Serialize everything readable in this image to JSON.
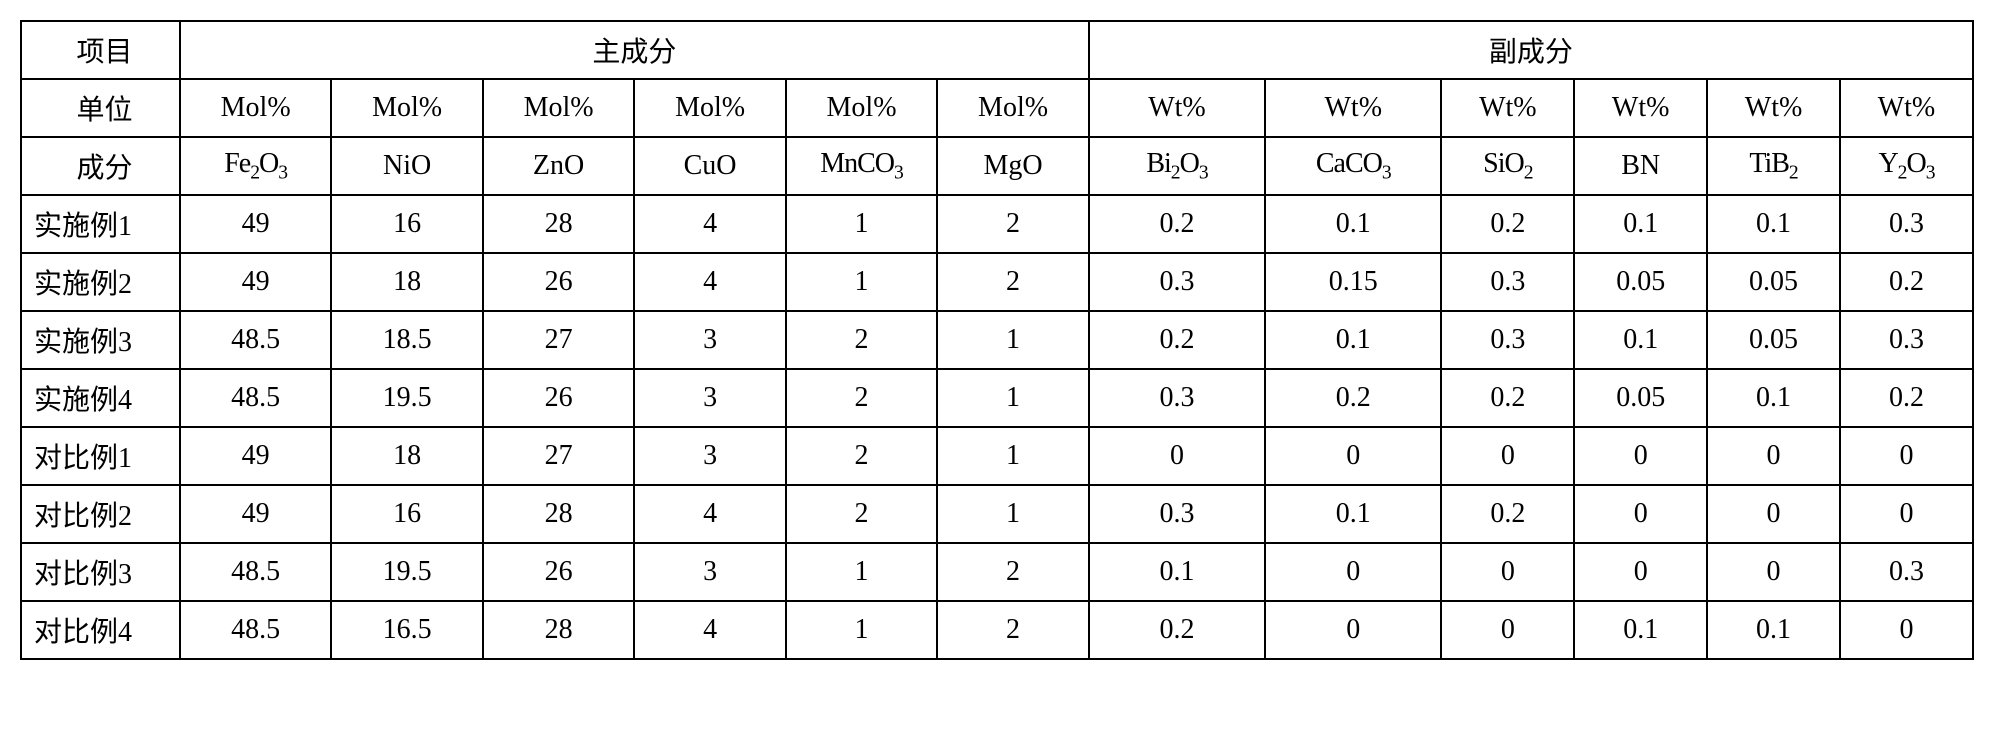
{
  "table": {
    "type": "table",
    "background_color": "#ffffff",
    "border_color": "#000000",
    "border_width": 2,
    "font_size": 28,
    "text_color": "#000000",
    "column_widths": {
      "label": 128,
      "main": 122,
      "wide": 142,
      "sub": 107
    },
    "header_row1": {
      "col1": "项目",
      "col2": "主成分",
      "col3": "副成分"
    },
    "header_row2": {
      "label": "单位",
      "main_unit": "Mol%",
      "sub_unit": "Wt%"
    },
    "header_row3": {
      "label": "成分",
      "components": {
        "c1": "Fe₂O₃",
        "c2": "NiO",
        "c3": "ZnO",
        "c4": "CuO",
        "c5": "MnCO₃",
        "c6": "MgO",
        "c7": "Bi₂O₃",
        "c8": "CaCO₃",
        "c9": "SiO₂",
        "c10": "BN",
        "c11": "TiB₂",
        "c12": "Y₂O₃"
      }
    },
    "rows": [
      {
        "label": "实施例1",
        "v": [
          "49",
          "16",
          "28",
          "4",
          "1",
          "2",
          "0.2",
          "0.1",
          "0.2",
          "0.1",
          "0.1",
          "0.3"
        ]
      },
      {
        "label": "实施例2",
        "v": [
          "49",
          "18",
          "26",
          "4",
          "1",
          "2",
          "0.3",
          "0.15",
          "0.3",
          "0.05",
          "0.05",
          "0.2"
        ]
      },
      {
        "label": "实施例3",
        "v": [
          "48.5",
          "18.5",
          "27",
          "3",
          "2",
          "1",
          "0.2",
          "0.1",
          "0.3",
          "0.1",
          "0.05",
          "0.3"
        ]
      },
      {
        "label": "实施例4",
        "v": [
          "48.5",
          "19.5",
          "26",
          "3",
          "2",
          "1",
          "0.3",
          "0.2",
          "0.2",
          "0.05",
          "0.1",
          "0.2"
        ]
      },
      {
        "label": "对比例1",
        "v": [
          "49",
          "18",
          "27",
          "3",
          "2",
          "1",
          "0",
          "0",
          "0",
          "0",
          "0",
          "0"
        ]
      },
      {
        "label": "对比例2",
        "v": [
          "49",
          "16",
          "28",
          "4",
          "2",
          "1",
          "0.3",
          "0.1",
          "0.2",
          "0",
          "0",
          "0"
        ]
      },
      {
        "label": "对比例3",
        "v": [
          "48.5",
          "19.5",
          "26",
          "3",
          "1",
          "2",
          "0.1",
          "0",
          "0",
          "0",
          "0",
          "0.3"
        ]
      },
      {
        "label": "对比例4",
        "v": [
          "48.5",
          "16.5",
          "28",
          "4",
          "1",
          "2",
          "0.2",
          "0",
          "0",
          "0.1",
          "0.1",
          "0"
        ]
      }
    ]
  }
}
